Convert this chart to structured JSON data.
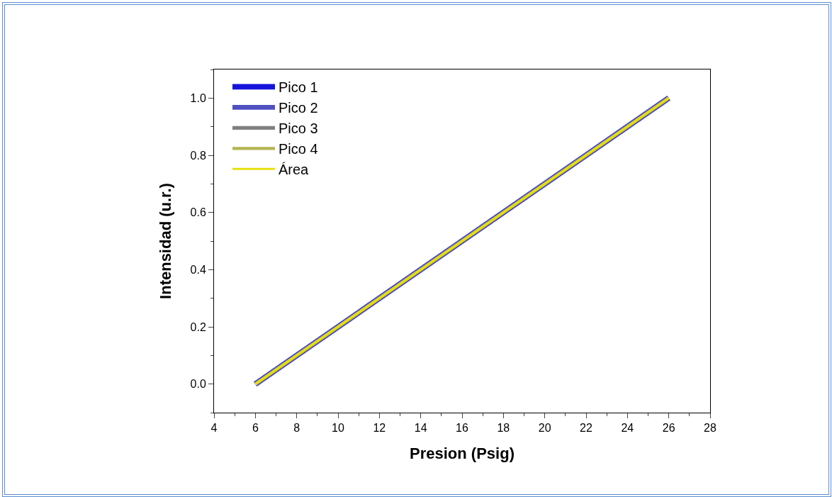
{
  "chart_data": {
    "type": "line",
    "xlabel": "Presion (Psig)",
    "ylabel": "Intensidad (u.r.)",
    "x": [
      6,
      26
    ],
    "series": [
      {
        "name": "Pico 1",
        "color": "#1414dc",
        "values": [
          0,
          1
        ]
      },
      {
        "name": "Pico 2",
        "color": "#5050c0",
        "values": [
          0,
          1
        ]
      },
      {
        "name": "Pico 3",
        "color": "#808080",
        "values": [
          0,
          1
        ]
      },
      {
        "name": "Pico 4",
        "color": "#b4b450",
        "values": [
          0,
          1
        ]
      },
      {
        "name": "Área",
        "color": "#e8e00c",
        "values": [
          0,
          1
        ]
      }
    ],
    "xlim": [
      4,
      28
    ],
    "xticks": [
      4,
      6,
      8,
      10,
      12,
      14,
      16,
      18,
      20,
      22,
      24,
      26,
      28
    ],
    "ylim": [
      -0.1,
      1.1
    ],
    "yticks": [
      {
        "value": 0,
        "label": "0.0"
      },
      {
        "value": 0.2,
        "label": "0.2"
      },
      {
        "value": 0.4,
        "label": "0.4"
      },
      {
        "value": 0.6,
        "label": "0.6"
      },
      {
        "value": 0.8,
        "label": "0.8"
      },
      {
        "value": 1,
        "label": "1.0"
      }
    ],
    "grid": false,
    "legend": "top left",
    "marker": "none",
    "line_style": "solid"
  }
}
